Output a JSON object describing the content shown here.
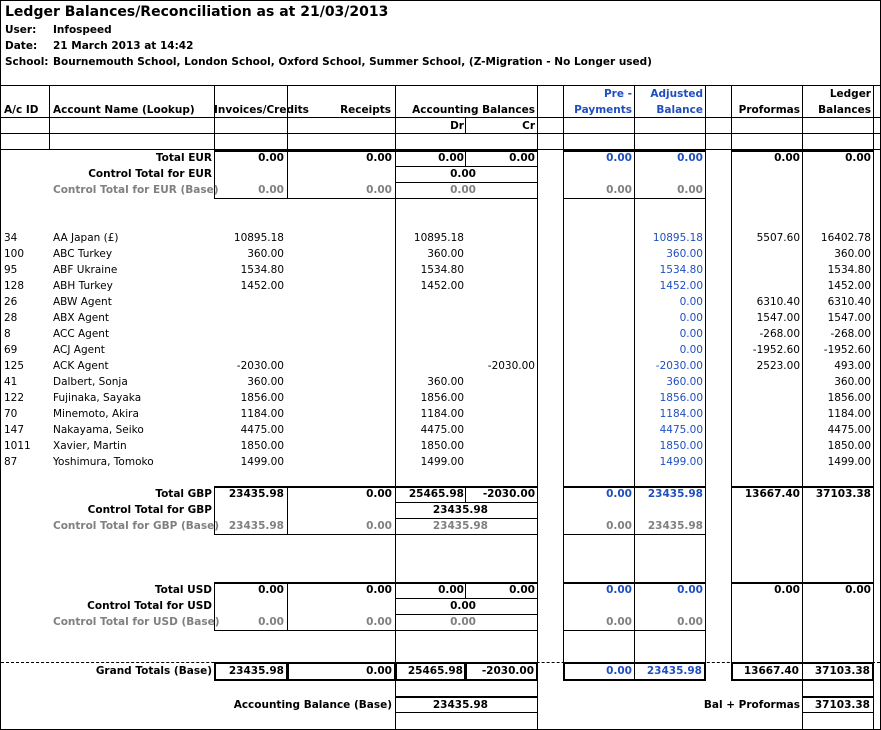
{
  "title": "Ledger Balances/Reconciliation as at 21/03/2013",
  "meta": {
    "user_label": "User:",
    "user_value": "Infospeed",
    "date_label": "Date:",
    "date_value": "21 March 2013 at 14:42",
    "school_label": "School:",
    "school_value": "Bournemouth School, London School, Oxford School, Summer School, (Z-Migration - No Longer used)"
  },
  "headers": {
    "ac_id": "A/c ID",
    "account_name": "Account Name (Lookup)",
    "invoices": "Invoices/Credits",
    "receipts": "Receipts",
    "accounting": "Accounting Balances",
    "dr": "Dr",
    "cr": "Cr",
    "pre1": "Pre -",
    "pre2": "Payments",
    "adj1": "Adjusted",
    "adj2": "Balance",
    "proformas": "Proformas",
    "ledger1": "Ledger",
    "ledger2": "Balances"
  },
  "eur": {
    "total": {
      "label": "Total EUR",
      "inv": "0.00",
      "rec": "0.00",
      "dr": "0.00",
      "cr": "0.00",
      "pre": "0.00",
      "adj": "0.00",
      "pro": "0.00",
      "led": "0.00"
    },
    "control": {
      "label": "Control Total for EUR",
      "acc": "0.00"
    },
    "base": {
      "label": "Control Total for EUR (Base)",
      "inv": "0.00",
      "rec": "0.00",
      "acc": "0.00",
      "pre": "0.00",
      "adj": "0.00"
    }
  },
  "accounts": [
    {
      "id": "34",
      "name": "AA Japan (£)",
      "inv": "10895.18",
      "dr": "10895.18",
      "cr": "",
      "adj": "10895.18",
      "pro": "5507.60",
      "led": "16402.78"
    },
    {
      "id": "100",
      "name": "ABC Turkey",
      "inv": "360.00",
      "dr": "360.00",
      "cr": "",
      "adj": "360.00",
      "pro": "",
      "led": "360.00"
    },
    {
      "id": "95",
      "name": "ABF Ukraine",
      "inv": "1534.80",
      "dr": "1534.80",
      "cr": "",
      "adj": "1534.80",
      "pro": "",
      "led": "1534.80"
    },
    {
      "id": "128",
      "name": "ABH Turkey",
      "inv": "1452.00",
      "dr": "1452.00",
      "cr": "",
      "adj": "1452.00",
      "pro": "",
      "led": "1452.00"
    },
    {
      "id": "26",
      "name": "ABW Agent",
      "inv": "",
      "dr": "",
      "cr": "",
      "adj": "0.00",
      "pro": "6310.40",
      "led": "6310.40"
    },
    {
      "id": "28",
      "name": "ABX Agent",
      "inv": "",
      "dr": "",
      "cr": "",
      "adj": "0.00",
      "pro": "1547.00",
      "led": "1547.00"
    },
    {
      "id": "8",
      "name": "ACC Agent",
      "inv": "",
      "dr": "",
      "cr": "",
      "adj": "0.00",
      "pro": "-268.00",
      "led": "-268.00"
    },
    {
      "id": "69",
      "name": "ACJ Agent",
      "inv": "",
      "dr": "",
      "cr": "",
      "adj": "0.00",
      "pro": "-1952.60",
      "led": "-1952.60"
    },
    {
      "id": "125",
      "name": "ACK Agent",
      "inv": "-2030.00",
      "dr": "",
      "cr": "-2030.00",
      "adj": "-2030.00",
      "pro": "2523.00",
      "led": "493.00"
    },
    {
      "id": "41",
      "name": "Dalbert, Sonja",
      "inv": "360.00",
      "dr": "360.00",
      "cr": "",
      "adj": "360.00",
      "pro": "",
      "led": "360.00"
    },
    {
      "id": "122",
      "name": "Fujinaka, Sayaka",
      "inv": "1856.00",
      "dr": "1856.00",
      "cr": "",
      "adj": "1856.00",
      "pro": "",
      "led": "1856.00"
    },
    {
      "id": "70",
      "name": "Minemoto, Akira",
      "inv": "1184.00",
      "dr": "1184.00",
      "cr": "",
      "adj": "1184.00",
      "pro": "",
      "led": "1184.00"
    },
    {
      "id": "147",
      "name": "Nakayama, Seiko",
      "inv": "4475.00",
      "dr": "4475.00",
      "cr": "",
      "adj": "4475.00",
      "pro": "",
      "led": "4475.00"
    },
    {
      "id": "1011",
      "name": "Xavier, Martin",
      "inv": "1850.00",
      "dr": "1850.00",
      "cr": "",
      "adj": "1850.00",
      "pro": "",
      "led": "1850.00"
    },
    {
      "id": "87",
      "name": "Yoshimura, Tomoko",
      "inv": "1499.00",
      "dr": "1499.00",
      "cr": "",
      "adj": "1499.00",
      "pro": "",
      "led": "1499.00"
    }
  ],
  "gbp": {
    "total": {
      "label": "Total GBP",
      "inv": "23435.98",
      "rec": "0.00",
      "dr": "25465.98",
      "cr": "-2030.00",
      "pre": "0.00",
      "adj": "23435.98",
      "pro": "13667.40",
      "led": "37103.38"
    },
    "control": {
      "label": "Control Total for GBP",
      "acc": "23435.98"
    },
    "base": {
      "label": "Control Total for GBP (Base)",
      "inv": "23435.98",
      "rec": "0.00",
      "acc": "23435.98",
      "pre": "0.00",
      "adj": "23435.98"
    }
  },
  "usd": {
    "total": {
      "label": "Total USD",
      "inv": "0.00",
      "rec": "0.00",
      "dr": "0.00",
      "cr": "0.00",
      "pre": "0.00",
      "adj": "0.00",
      "pro": "0.00",
      "led": "0.00"
    },
    "control": {
      "label": "Control Total for USD",
      "acc": "0.00"
    },
    "base": {
      "label": "Control Total for USD (Base)",
      "inv": "0.00",
      "rec": "0.00",
      "acc": "0.00",
      "pre": "0.00",
      "adj": "0.00"
    }
  },
  "grand": {
    "label": "Grand Totals (Base)",
    "inv": "23435.98",
    "rec": "0.00",
    "dr": "25465.98",
    "cr": "-2030.00",
    "pre": "0.00",
    "adj": "23435.98",
    "pro": "13667.40",
    "led": "37103.38"
  },
  "footer": {
    "acc_label": "Accounting Balance (Base)",
    "acc_value": "23435.98",
    "bal_label": "Bal + Proformas",
    "bal_value": "37103.38"
  }
}
